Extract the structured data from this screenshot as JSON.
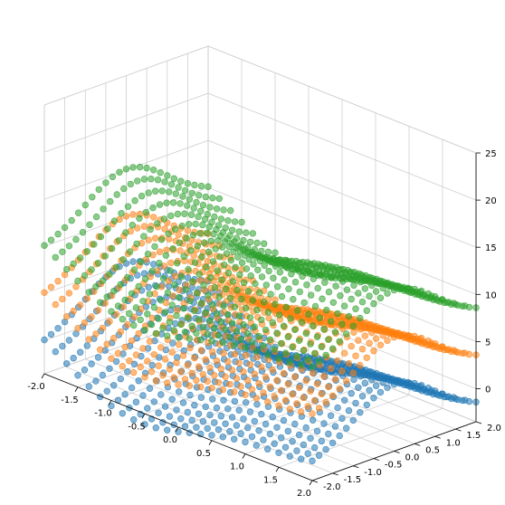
{
  "chart_data": {
    "type": "scatter",
    "projection": "3d",
    "title": "",
    "xlabel": "",
    "ylabel": "",
    "zlabel": "",
    "grid": true,
    "xlim": [
      -2.0,
      2.0
    ],
    "ylim": [
      -2.0,
      2.0
    ],
    "zlim": [
      -3.5,
      25.0
    ],
    "xticks": [
      "-2.0",
      "-1.5",
      "-1.0",
      "-0.5",
      "0.0",
      "0.5",
      "1.0",
      "1.5",
      "2.0"
    ],
    "yticks": [
      "-2.0",
      "-1.5",
      "-1.0",
      "-0.5",
      "0.0",
      "0.5",
      "1.0",
      "1.5",
      "2.0"
    ],
    "zticks": [
      "0",
      "5",
      "10",
      "15",
      "20",
      "25"
    ],
    "surface": {
      "description_formula": "z = sin(2x) + cos(2y) + (x^2 - y^2)/1.2 + offset",
      "grid_range": [
        -2.0,
        2.0
      ],
      "grid_points_per_axis": 25
    },
    "series": [
      {
        "color": "#1f77b4",
        "z_offset": 0
      },
      {
        "color": "#ff7f0e",
        "z_offset": 5
      },
      {
        "color": "#2ca02c",
        "z_offset": 10
      }
    ]
  }
}
